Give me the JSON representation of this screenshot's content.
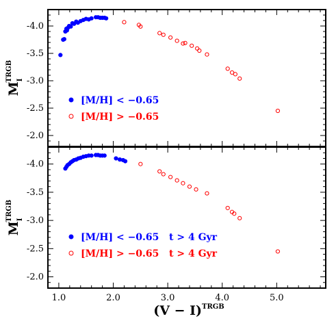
{
  "colors": {
    "blue": "#0000ff",
    "red": "#ff0000",
    "axis": "#000000"
  },
  "chart_data": [
    {
      "type": "scatter",
      "panel": "top",
      "xlabel": "(V − I)",
      "xlabel_sup": "TRGB",
      "ylabel": "M",
      "ylabel_sub": "I",
      "ylabel_sup": "TRGB",
      "xlim": [
        0.8,
        5.9
      ],
      "ylim": [
        -4.3,
        -1.8
      ],
      "y_inverted": true,
      "yticks": [
        "-4.0",
        "-3.5",
        "-3.0",
        "-2.5",
        "-2.0"
      ],
      "legend_position": "lower-left",
      "series": [
        {
          "name": "[M/H] < −0.65",
          "marker": "filled-circle",
          "color": "#0000ff",
          "x": [
            1.03,
            1.08,
            1.1,
            1.12,
            1.14,
            1.15,
            1.17,
            1.19,
            1.22,
            1.25,
            1.28,
            1.32,
            1.35,
            1.4,
            1.45,
            1.5,
            1.55,
            1.6,
            1.68,
            1.72,
            1.76,
            1.8,
            1.84,
            1.87
          ],
          "y": [
            -3.47,
            -3.75,
            -3.76,
            -3.9,
            -3.95,
            -3.92,
            -3.97,
            -4.0,
            -3.99,
            -4.05,
            -4.04,
            -4.08,
            -4.06,
            -4.09,
            -4.11,
            -4.13,
            -4.12,
            -4.14,
            -4.16,
            -4.16,
            -4.15,
            -4.15,
            -4.15,
            -4.14
          ]
        },
        {
          "name": "[M/H] > −0.65",
          "marker": "open-circle",
          "color": "#ff0000",
          "x": [
            2.2,
            2.47,
            2.5,
            2.85,
            2.92,
            3.05,
            3.17,
            3.28,
            3.32,
            3.44,
            3.54,
            3.58,
            3.72,
            4.1,
            4.18,
            4.24,
            4.32,
            5.02
          ],
          "y": [
            -4.07,
            -4.02,
            -3.99,
            -3.87,
            -3.84,
            -3.79,
            -3.73,
            -3.68,
            -3.69,
            -3.64,
            -3.59,
            -3.55,
            -3.48,
            -3.22,
            -3.15,
            -3.12,
            -3.04,
            -2.45
          ]
        }
      ]
    },
    {
      "type": "scatter",
      "panel": "bottom",
      "xlabel": "(V − I)",
      "xlabel_sup": "TRGB",
      "ylabel": "M",
      "ylabel_sub": "I",
      "ylabel_sup": "TRGB",
      "xlim": [
        0.8,
        5.9
      ],
      "ylim": [
        -4.3,
        -1.8
      ],
      "y_inverted": true,
      "xticks": [
        "1.0",
        "2.0",
        "3.0",
        "4.0",
        "5.0"
      ],
      "yticks": [
        "-4.0",
        "-3.5",
        "-3.0",
        "-2.5",
        "-2.0"
      ],
      "legend_position": "lower-left",
      "series": [
        {
          "name": "[M/H] < −0.65   t > 4 Gyr",
          "marker": "filled-circle",
          "color": "#0000ff",
          "x": [
            1.12,
            1.14,
            1.16,
            1.19,
            1.22,
            1.25,
            1.28,
            1.32,
            1.36,
            1.4,
            1.45,
            1.5,
            1.55,
            1.6,
            1.68,
            1.72,
            1.76,
            1.8,
            1.84,
            2.05,
            2.12,
            2.18,
            2.22
          ],
          "y": [
            -3.92,
            -3.95,
            -3.98,
            -4.0,
            -4.03,
            -4.05,
            -4.07,
            -4.08,
            -4.1,
            -4.11,
            -4.13,
            -4.14,
            -4.15,
            -4.15,
            -4.16,
            -4.16,
            -4.15,
            -4.15,
            -4.15,
            -4.1,
            -4.08,
            -4.07,
            -4.05
          ]
        },
        {
          "name": "[M/H] > −0.65   t > 4 Gyr",
          "marker": "open-circle",
          "color": "#ff0000",
          "x": [
            2.5,
            2.85,
            2.92,
            3.05,
            3.17,
            3.28,
            3.4,
            3.52,
            3.72,
            4.1,
            4.18,
            4.22,
            4.32,
            5.02
          ],
          "y": [
            -4.0,
            -3.87,
            -3.82,
            -3.77,
            -3.71,
            -3.66,
            -3.6,
            -3.55,
            -3.48,
            -3.22,
            -3.15,
            -3.12,
            -3.04,
            -2.45
          ]
        }
      ]
    }
  ]
}
